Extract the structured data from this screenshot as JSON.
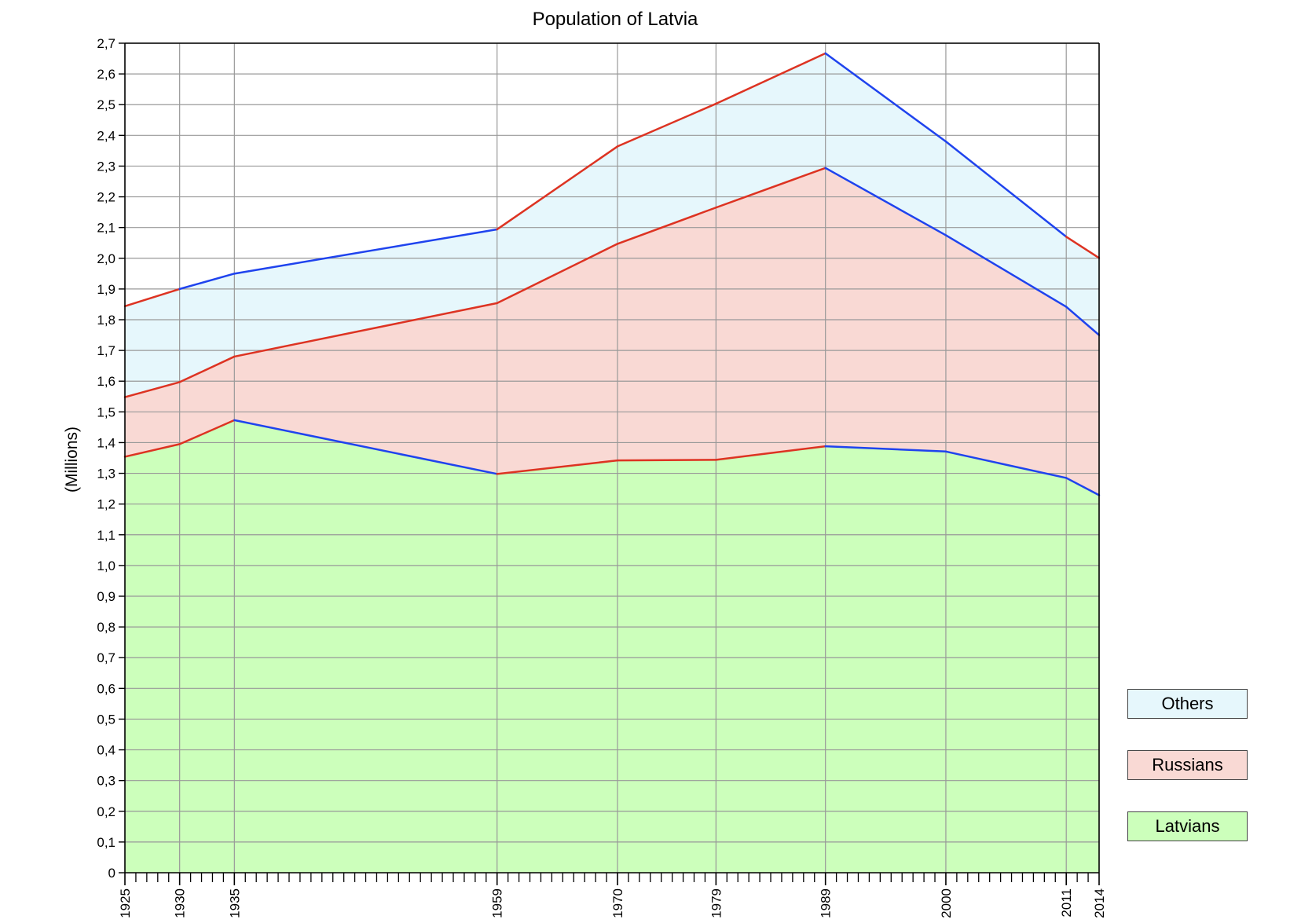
{
  "chart_data": {
    "type": "area",
    "stacked": true,
    "title": "Population of Latvia",
    "ylabel": "(Millions)",
    "xlabel": "",
    "xlim": [
      1925,
      2014
    ],
    "ylim": [
      0,
      2.7
    ],
    "grid": true,
    "x": [
      1925,
      1930,
      1935,
      1959,
      1970,
      1979,
      1989,
      2000,
      2011,
      2014
    ],
    "x_tick_labels": [
      "1925",
      "1930",
      "1935",
      "1959",
      "1970",
      "1979",
      "1989",
      "2000",
      "2011",
      "2014"
    ],
    "y_tick_labels": [
      "0",
      "0,1",
      "0,2",
      "0,3",
      "0,4",
      "0,5",
      "0,6",
      "0,7",
      "0,8",
      "0,9",
      "1,0",
      "1,1",
      "1,2",
      "1,3",
      "1,4",
      "1,5",
      "1,6",
      "1,7",
      "1,8",
      "1,9",
      "2,0",
      "2,1",
      "2,2",
      "2,3",
      "2,4",
      "2,5",
      "2,6",
      "2,7"
    ],
    "series": [
      {
        "name": "Latvians",
        "values": [
          1.354,
          1.395,
          1.473,
          1.298,
          1.342,
          1.344,
          1.388,
          1.371,
          1.285,
          1.229
        ],
        "color": "#ccffbb"
      },
      {
        "name": "Russians",
        "values": [
          0.194,
          0.202,
          0.207,
          0.556,
          0.705,
          0.821,
          0.906,
          0.704,
          0.557,
          0.521
        ],
        "color": "#f9d9d4"
      },
      {
        "name": "Others",
        "values": [
          0.296,
          0.303,
          0.27,
          0.24,
          0.317,
          0.338,
          0.373,
          0.305,
          0.228,
          0.251
        ],
        "color": "#e6f7fc"
      }
    ],
    "total": [
      1.844,
      1.9,
      1.95,
      2.094,
      2.364,
      2.503,
      2.667,
      2.38,
      2.07,
      2.001
    ],
    "line_colors": {
      "red": "#dd3322",
      "blue": "#1f43ee"
    },
    "legend_position": "bottom-right",
    "legend_order": [
      "Others",
      "Russians",
      "Latvians"
    ]
  }
}
